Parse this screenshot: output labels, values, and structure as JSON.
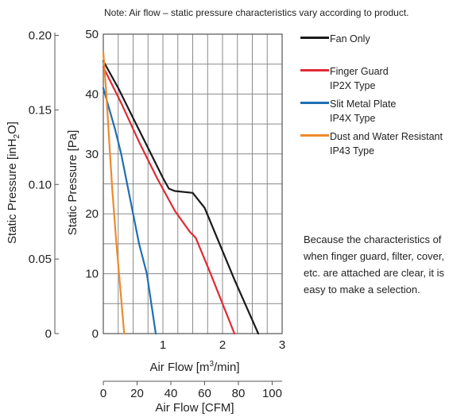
{
  "note": "Note: Air flow – static pressure characteristics vary according to product.",
  "description": "Because the characteristics of when finger guard, filter, cover, etc. are attached are clear, it is easy to make a selection.",
  "chart_data": {
    "type": "line",
    "grid": true,
    "legend_placement": "right",
    "x_axis": {
      "label": "Air Flow [m3/min]",
      "label_main": "Air Flow [m",
      "label_sup": "3",
      "label_tail": "/min]",
      "range": [
        0,
        3
      ],
      "ticks": [
        0,
        1,
        2,
        3
      ],
      "tick_labels": [
        "1",
        "2",
        "3"
      ]
    },
    "x2_axis": {
      "label": "Air Flow [CFM]",
      "range": [
        0,
        105.9
      ],
      "ticks": [
        0,
        20,
        40,
        60,
        80,
        100
      ],
      "tick_labels": [
        "0",
        "20",
        "40",
        "60",
        "80",
        "100"
      ]
    },
    "y_axis": {
      "label": "Static Pressure [Pa]",
      "range": [
        0,
        50
      ],
      "ticks": [
        0,
        10,
        20,
        30,
        40,
        50
      ],
      "tick_labels": [
        "0",
        "10",
        "20",
        "30",
        "40",
        "50"
      ]
    },
    "y2_axis": {
      "label": "Static Pressure [inH2O]",
      "label_main": "Static Pressure [inH",
      "label_sub": "2",
      "label_tail": "O]",
      "range": [
        0,
        0.2008
      ],
      "ticks": [
        0,
        0.05,
        0.1,
        0.15,
        0.2
      ],
      "tick_labels": [
        "0",
        "0.05",
        "0.10",
        "0.15",
        "0.20"
      ]
    },
    "series": [
      {
        "name": "Fan Only",
        "legend_lines": [
          "Fan Only"
        ],
        "color": "#1a1a1a",
        "x": [
          0,
          0.25,
          0.5,
          0.75,
          1.0,
          1.1,
          1.2,
          1.5,
          1.7,
          2.2,
          2.6
        ],
        "y": [
          45.5,
          41,
          36,
          31,
          26,
          24.2,
          23.8,
          23.5,
          21,
          9,
          0
        ]
      },
      {
        "name": "Finger Guard IP2X Type",
        "legend_lines": [
          "Finger Guard",
          "IP2X Type"
        ],
        "color": "#e02b35",
        "x": [
          0,
          0.3,
          0.6,
          0.9,
          1.2,
          1.45,
          1.55,
          1.8,
          2.2
        ],
        "y": [
          44.5,
          38.5,
          32,
          26,
          20.5,
          17,
          16,
          10,
          0
        ]
      },
      {
        "name": "Slit Metal Plate IP4X Type",
        "legend_lines": [
          "Slit Metal Plate",
          "IP4X Type"
        ],
        "color": "#1f6fb2",
        "x": [
          0,
          0.1,
          0.2,
          0.3,
          0.38,
          0.5,
          0.6,
          0.73,
          0.88
        ],
        "y": [
          41,
          37.5,
          34,
          30,
          26,
          20,
          15,
          10,
          0
        ]
      },
      {
        "name": "Dust and Water Resistant IP43 Type",
        "legend_lines": [
          "Dust and Water Resistant",
          "IP43 Type"
        ],
        "color": "#ee8a2a",
        "x": [
          0,
          0.05,
          0.1,
          0.15,
          0.22,
          0.35
        ],
        "y": [
          47,
          40,
          32,
          24,
          15,
          0
        ]
      }
    ]
  }
}
